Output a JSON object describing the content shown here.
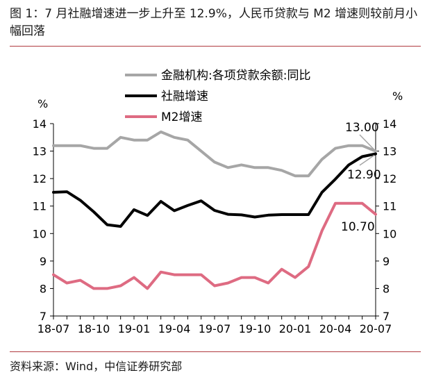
{
  "title": "图 1：7 月社融增速进一步上升至 12.9%，人民币贷款与 M2 增速则较前月小幅回落",
  "source": "资料来源：Wind，中信证券研究部",
  "chart_data": {
    "type": "line",
    "x_tick_labels": [
      "18-07",
      "18-10",
      "19-01",
      "19-04",
      "19-07",
      "19-10",
      "20-01",
      "20-04",
      "20-07"
    ],
    "x": [
      "18-07",
      "18-08",
      "18-09",
      "18-10",
      "18-11",
      "18-12",
      "19-01",
      "19-02",
      "19-03",
      "19-04",
      "19-05",
      "19-06",
      "19-07",
      "19-08",
      "19-09",
      "19-10",
      "19-11",
      "19-12",
      "20-01",
      "20-02",
      "20-03",
      "20-04",
      "20-05",
      "20-06",
      "20-07"
    ],
    "ylabel_left": "%",
    "ylabel_right": "%",
    "ylim": [
      7,
      14
    ],
    "y_ticks": [
      "7",
      "8",
      "9",
      "10",
      "11",
      "12",
      "13",
      "14"
    ],
    "legend_position": "top-center",
    "series": [
      {
        "name": "金融机构:各项贷款余额:同比",
        "color": "#a6a6a6",
        "values": [
          13.2,
          13.2,
          13.2,
          13.1,
          13.1,
          13.5,
          13.4,
          13.4,
          13.7,
          13.5,
          13.4,
          13.0,
          12.6,
          12.4,
          12.5,
          12.4,
          12.4,
          12.3,
          12.1,
          12.1,
          12.7,
          13.1,
          13.2,
          13.2,
          13.0
        ]
      },
      {
        "name": "社融增速",
        "color": "#000000",
        "values": [
          11.5,
          11.52,
          11.21,
          10.79,
          10.32,
          10.26,
          10.87,
          10.66,
          11.17,
          10.83,
          11.02,
          11.19,
          10.84,
          10.7,
          10.68,
          10.6,
          10.67,
          10.69,
          10.69,
          10.69,
          11.5,
          11.98,
          12.5,
          12.8,
          12.9
        ]
      },
      {
        "name": "M2增速",
        "color": "#de6b82",
        "values": [
          8.5,
          8.2,
          8.3,
          8.0,
          8.0,
          8.1,
          8.4,
          8.0,
          8.6,
          8.5,
          8.5,
          8.5,
          8.1,
          8.2,
          8.4,
          8.4,
          8.2,
          8.7,
          8.4,
          8.8,
          10.1,
          11.1,
          11.1,
          11.1,
          10.7
        ]
      }
    ],
    "annotations": [
      "13.00",
      "12.90",
      "10.70"
    ]
  }
}
